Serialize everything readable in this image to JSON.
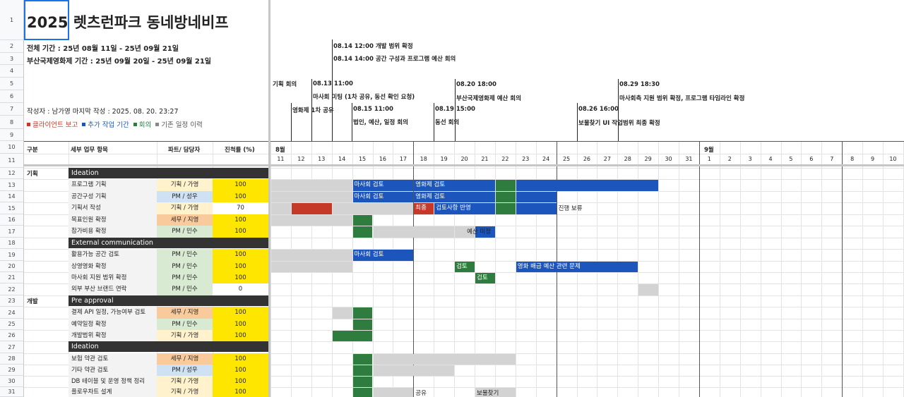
{
  "sheet": {
    "title": "2025 렛츠런파크 동네방네비프",
    "period_total": "전체 기간 : 25년 08월 11일 - 25년 09월 21일",
    "period_biff": "부산국제영화제 기간 : 25년 09월 20일 - 25년 09월 21일",
    "author": "작성자 : 남가영    마지막 작성 : 2025. 08. 20. 23:27",
    "legend": [
      {
        "label": "클라이언트 보고",
        "color": "#c53929"
      },
      {
        "label": "추가 작업 기간",
        "color": "#1c56bd"
      },
      {
        "label": "회의",
        "color": "#2e7d3f"
      },
      {
        "label": "기존 일정 이력",
        "color": "#888888"
      }
    ]
  },
  "row_numbers": [
    "1",
    "2",
    "3",
    "4",
    "5",
    "6",
    "7",
    "8",
    "9",
    "10",
    "11",
    "12",
    "13",
    "14",
    "15",
    "16",
    "17",
    "18",
    "19",
    "20",
    "21",
    "22",
    "23",
    "24",
    "25",
    "26",
    "27",
    "28",
    "29",
    "30",
    "31"
  ],
  "headers": {
    "category": "구분",
    "task": "세부 업무 항목",
    "part": "파트/ 담당자",
    "progress": "진척률 (%)"
  },
  "months": {
    "aug": "8월",
    "sep": "9월"
  },
  "days": [
    "11",
    "12",
    "13",
    "14",
    "15",
    "16",
    "17",
    "18",
    "19",
    "20",
    "21",
    "22",
    "23",
    "24",
    "25",
    "26",
    "27",
    "28",
    "29",
    "30",
    "31",
    "1",
    "2",
    "3",
    "4",
    "5",
    "6",
    "7",
    "8",
    "9",
    "10"
  ],
  "events": [
    {
      "date": "",
      "text": "기획 회의"
    },
    {
      "date": "",
      "text": "영화제 1차 공유"
    },
    {
      "date": "08.13 11:00",
      "text": "마사회 미팅 (1차 공유, 동선 확인 요청)"
    },
    {
      "date": "08.14 12:00 개발 범위 확정",
      "text": "08.14 14:00 공간 구성과 프로그램 예산 회의"
    },
    {
      "date": "08.15 11:00",
      "text": "법인, 예산, 일정 회의"
    },
    {
      "date": "08.19 15:00",
      "text": "동선 회의"
    },
    {
      "date": "08.20 18:00",
      "text": "부산국제영화제 예산 회의"
    },
    {
      "date": "08.26 16:00",
      "text": "보물찾기 UI 작업범위 최종 확정"
    },
    {
      "date": "08.29 18:30",
      "text": "마사회측 지원 범위 확정, 프로그램 타임라인 확정"
    }
  ],
  "sections": {
    "s1_cat": "기획",
    "s1a": "Ideation",
    "s1b": "External communication",
    "s2_cat": "개발",
    "s2a": "Pre approval",
    "s2b": "Ideation"
  },
  "tasks": [
    {
      "name": "프로그램 기획",
      "part": "기획 / 가영",
      "pc": "#fff2cc",
      "progress": "100"
    },
    {
      "name": "공간구성 기획",
      "part": "PM / 성우",
      "pc": "#cfe2f3",
      "progress": "100"
    },
    {
      "name": "기획서 작성",
      "part": "기획 / 가영",
      "pc": "#fff2cc",
      "progress": "70"
    },
    {
      "name": "목표인원 확정",
      "part": "세무 / 지영",
      "pc": "#f9cb9c",
      "progress": "100"
    },
    {
      "name": "참가비용 확정",
      "part": "PM / 민수",
      "pc": "#d9ead3",
      "progress": "100"
    },
    {
      "name": "활용가능 공간 검토",
      "part": "PM / 민수",
      "pc": "#d9ead3",
      "progress": "100"
    },
    {
      "name": "상영영화 확정",
      "part": "PM / 민수",
      "pc": "#d9ead3",
      "progress": "100"
    },
    {
      "name": "마사회 지원 범위 확정",
      "part": "PM / 민수",
      "pc": "#d9ead3",
      "progress": "100"
    },
    {
      "name": "외부 부산 브랜드 연락",
      "part": "PM / 민수",
      "pc": "#d9ead3",
      "progress": "0"
    },
    {
      "name": "결제 API 일정, 가능여부 검토",
      "part": "세무 / 지영",
      "pc": "#f9cb9c",
      "progress": "100"
    },
    {
      "name": "예약일정 확정",
      "part": "PM / 민수",
      "pc": "#d9ead3",
      "progress": "100"
    },
    {
      "name": "개발범위 확정",
      "part": "기획 / 가영",
      "pc": "#fff2cc",
      "progress": "100"
    },
    {
      "name": "보험 약관 검토",
      "part": "세무 / 지영",
      "pc": "#f9cb9c",
      "progress": "100"
    },
    {
      "name": "기타 약관 검토",
      "part": "PM / 성우",
      "pc": "#cfe2f3",
      "progress": "100"
    },
    {
      "name": "DB 테이블 및 운영 정책 정리",
      "part": "기획 / 가영",
      "pc": "#fff2cc",
      "progress": "100"
    },
    {
      "name": "플로우차트 설계",
      "part": "기획 / 가영",
      "pc": "#fff2cc",
      "progress": "100"
    }
  ],
  "bar_labels": {
    "r13a": "마사회 검토",
    "r13b": "영화제 검토",
    "r14a": "마사회 검토",
    "r14b": "영화제 검토",
    "r15a": "최종",
    "r15b": "검토사항 반영",
    "r15c": "진행 보류",
    "r17a": "예산 미정",
    "r19a": "마사회 검토",
    "r20a": "검토",
    "r20b": "영화 배급 예산 관련 문제",
    "r21a": "검토",
    "r31a": "공유",
    "r31b": "보물찾기"
  },
  "colors": {
    "blue": "#1c56bd",
    "green": "#2e7d3f",
    "red": "#c53929",
    "gray": "#d3d3d3",
    "yellow": "#ffe600"
  }
}
